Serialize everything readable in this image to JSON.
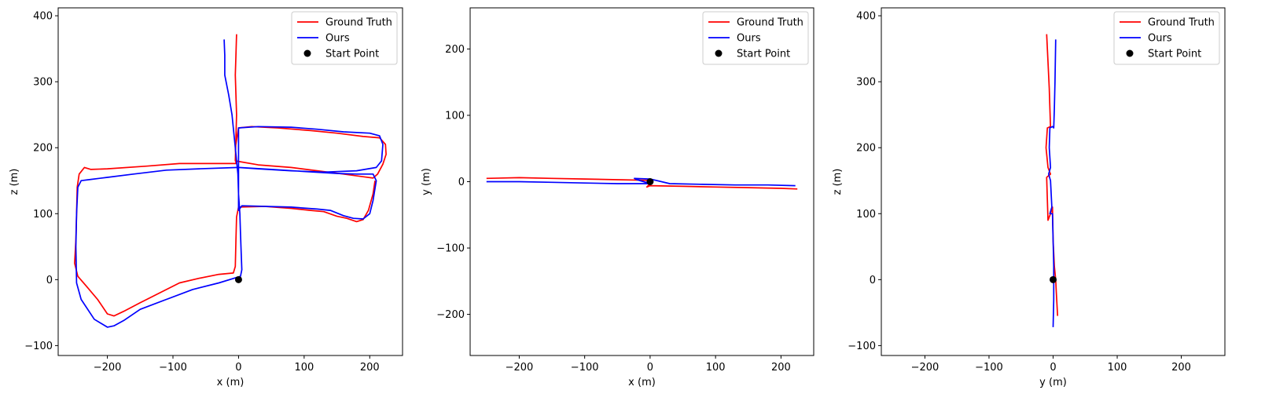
{
  "chart_data": [
    {
      "type": "line",
      "xlabel": "x (m)",
      "ylabel": "z (m)",
      "xlim": [
        -275,
        250
      ],
      "ylim": [
        -115,
        412
      ],
      "xticks": [
        -200,
        -100,
        0,
        100,
        200
      ],
      "yticks": [
        -100,
        0,
        100,
        200,
        300,
        400
      ],
      "xtick_labels": [
        "−200",
        "−100",
        "0",
        "100",
        "200"
      ],
      "ytick_labels": [
        "−100",
        "0",
        "100",
        "200",
        "300",
        "400"
      ],
      "legend": {
        "placement": "top-right",
        "entries": [
          "Ground Truth",
          "Ours",
          "Start Point"
        ]
      },
      "series": [
        {
          "name": "Ground Truth",
          "color": "#ff0000",
          "points": [
            [
              -3,
              372
            ],
            [
              -4,
              340
            ],
            [
              -5,
              310
            ],
            [
              -4,
              280
            ],
            [
              -3,
              250
            ],
            [
              -4,
              215
            ],
            [
              -5,
              180
            ],
            [
              30,
              174
            ],
            [
              80,
              170
            ],
            [
              120,
              165
            ],
            [
              160,
              160
            ],
            [
              190,
              156
            ],
            [
              205,
              154
            ],
            [
              212,
              160
            ],
            [
              220,
              175
            ],
            [
              225,
              190
            ],
            [
              224,
              205
            ],
            [
              215,
              215
            ],
            [
              190,
              217
            ],
            [
              150,
              222
            ],
            [
              110,
              226
            ],
            [
              60,
              230
            ],
            [
              20,
              232
            ],
            [
              0,
              230
            ],
            [
              -5,
              200
            ],
            [
              -4,
              176
            ],
            [
              -50,
              176
            ],
            [
              -90,
              176
            ],
            [
              -140,
              172
            ],
            [
              -200,
              168
            ],
            [
              -225,
              167
            ],
            [
              -235,
              170
            ],
            [
              -243,
              160
            ],
            [
              -246,
              140
            ],
            [
              -247,
              100
            ],
            [
              -248,
              60
            ],
            [
              -250,
              25
            ],
            [
              -245,
              5
            ],
            [
              -232,
              -10
            ],
            [
              -215,
              -30
            ],
            [
              -200,
              -52
            ],
            [
              -190,
              -55
            ],
            [
              -175,
              -48
            ],
            [
              -150,
              -35
            ],
            [
              -120,
              -20
            ],
            [
              -90,
              -5
            ],
            [
              -60,
              2
            ],
            [
              -30,
              8
            ],
            [
              -8,
              10
            ],
            [
              -5,
              20
            ],
            [
              -4,
              60
            ],
            [
              -3,
              95
            ],
            [
              0,
              110
            ],
            [
              40,
              111
            ],
            [
              80,
              108
            ],
            [
              110,
              105
            ],
            [
              130,
              103
            ],
            [
              150,
              96
            ],
            [
              165,
              93
            ],
            [
              180,
              88
            ],
            [
              190,
              91
            ],
            [
              198,
              105
            ],
            [
              205,
              130
            ],
            [
              208,
              150
            ]
          ]
        },
        {
          "name": "Ours",
          "color": "#0000ff",
          "points": [
            [
              -22,
              364
            ],
            [
              -21,
              340
            ],
            [
              -21,
              310
            ],
            [
              -15,
              280
            ],
            [
              -10,
              250
            ],
            [
              -7,
              220
            ],
            [
              -5,
              200
            ],
            [
              -3,
              180
            ],
            [
              -1,
              160
            ],
            [
              0,
              130
            ],
            [
              2,
              100
            ],
            [
              3,
              70
            ],
            [
              4,
              40
            ],
            [
              5,
              15
            ],
            [
              3,
              5
            ],
            [
              -30,
              -5
            ],
            [
              -70,
              -15
            ],
            [
              -110,
              -30
            ],
            [
              -150,
              -45
            ],
            [
              -175,
              -62
            ],
            [
              -190,
              -70
            ],
            [
              -200,
              -72
            ],
            [
              -220,
              -60
            ],
            [
              -240,
              -30
            ],
            [
              -247,
              -5
            ],
            [
              -248,
              50
            ],
            [
              -247,
              100
            ],
            [
              -245,
              140
            ],
            [
              -240,
              150
            ],
            [
              -225,
              152
            ],
            [
              -200,
              155
            ],
            [
              -160,
              160
            ],
            [
              -110,
              166
            ],
            [
              -60,
              168
            ],
            [
              0,
              170
            ],
            [
              50,
              167
            ],
            [
              100,
              164
            ],
            [
              150,
              161
            ],
            [
              180,
              160
            ],
            [
              205,
              160
            ],
            [
              210,
              150
            ],
            [
              205,
              120
            ],
            [
              200,
              100
            ],
            [
              190,
              92
            ],
            [
              175,
              93
            ],
            [
              160,
              97
            ],
            [
              140,
              105
            ],
            [
              120,
              107
            ],
            [
              80,
              110
            ],
            [
              40,
              111
            ],
            [
              5,
              112
            ],
            [
              0,
              105
            ],
            [
              0,
              150
            ],
            [
              0,
              200
            ],
            [
              0,
              230
            ],
            [
              30,
              232
            ],
            [
              80,
              231
            ],
            [
              120,
              228
            ],
            [
              160,
              224
            ],
            [
              200,
              222
            ],
            [
              215,
              218
            ],
            [
              220,
              205
            ],
            [
              218,
              180
            ],
            [
              210,
              170
            ],
            [
              180,
              165
            ],
            [
              130,
              163
            ],
            [
              80,
              165
            ],
            [
              30,
              168
            ],
            [
              0,
              170
            ]
          ]
        },
        {
          "name": "Start Point",
          "color": "#000000",
          "marker": true,
          "points": [
            [
              0,
              0
            ]
          ]
        }
      ]
    },
    {
      "type": "line",
      "xlabel": "x (m)",
      "ylabel": "y (m)",
      "xlim": [
        -275,
        250
      ],
      "ylim": [
        -262,
        262
      ],
      "xticks": [
        -200,
        -100,
        0,
        100,
        200
      ],
      "yticks": [
        -200,
        -100,
        0,
        100,
        200
      ],
      "xtick_labels": [
        "−200",
        "−100",
        "0",
        "100",
        "200"
      ],
      "ytick_labels": [
        "−200",
        "−100",
        "0",
        "100",
        "200"
      ],
      "legend": {
        "placement": "top-right",
        "entries": [
          "Ground Truth",
          "Ours",
          "Start Point"
        ]
      },
      "series": [
        {
          "name": "Ground Truth",
          "color": "#ff0000",
          "points": [
            [
              -250,
              5
            ],
            [
              -200,
              6
            ],
            [
              -150,
              5
            ],
            [
              -100,
              4
            ],
            [
              -50,
              3
            ],
            [
              0,
              2
            ],
            [
              -2,
              -5
            ],
            [
              -5,
              -8
            ],
            [
              0,
              -6
            ],
            [
              50,
              -7
            ],
            [
              100,
              -8
            ],
            [
              150,
              -9
            ],
            [
              200,
              -10
            ],
            [
              225,
              -11
            ]
          ]
        },
        {
          "name": "Ours",
          "color": "#0000ff",
          "points": [
            [
              -250,
              0
            ],
            [
              -200,
              0
            ],
            [
              -150,
              -1
            ],
            [
              -100,
              -2
            ],
            [
              -50,
              -3
            ],
            [
              0,
              -3
            ],
            [
              -20,
              3
            ],
            [
              -24,
              5
            ],
            [
              0,
              4
            ],
            [
              30,
              -3
            ],
            [
              80,
              -4
            ],
            [
              130,
              -5
            ],
            [
              180,
              -5
            ],
            [
              222,
              -6
            ]
          ]
        },
        {
          "name": "Start Point",
          "color": "#000000",
          "marker": true,
          "points": [
            [
              0,
              0
            ]
          ]
        }
      ]
    },
    {
      "type": "line",
      "xlabel": "y (m)",
      "ylabel": "z (m)",
      "xlim": [
        -268,
        268
      ],
      "ylim": [
        -115,
        412
      ],
      "xticks": [
        -200,
        -100,
        0,
        100,
        200
      ],
      "yticks": [
        -100,
        0,
        100,
        200,
        300,
        400
      ],
      "xtick_labels": [
        "−200",
        "−100",
        "0",
        "100",
        "200"
      ],
      "ytick_labels": [
        "−100",
        "0",
        "100",
        "200",
        "300",
        "400"
      ],
      "legend": {
        "placement": "top-right",
        "entries": [
          "Ground Truth",
          "Ours",
          "Start Point"
        ]
      },
      "series": [
        {
          "name": "Ground Truth",
          "color": "#ff0000",
          "points": [
            [
              -10,
              372
            ],
            [
              -8,
              330
            ],
            [
              -6,
              290
            ],
            [
              -5,
              260
            ],
            [
              -4,
              232
            ],
            [
              -9,
              230
            ],
            [
              -11,
              200
            ],
            [
              -8,
              170
            ],
            [
              -4,
              160
            ],
            [
              -10,
              155
            ],
            [
              -8,
              90
            ],
            [
              -4,
              100
            ],
            [
              -1,
              110
            ],
            [
              0,
              60
            ],
            [
              2,
              20
            ],
            [
              4,
              0
            ],
            [
              5,
              -20
            ],
            [
              7,
              -55
            ]
          ]
        },
        {
          "name": "Ours",
          "color": "#0000ff",
          "points": [
            [
              4,
              364
            ],
            [
              3,
              300
            ],
            [
              2,
              260
            ],
            [
              1,
              230
            ],
            [
              -1,
              232
            ],
            [
              -5,
              230
            ],
            [
              -6,
              200
            ],
            [
              -4,
              170
            ],
            [
              -7,
              160
            ],
            [
              -4,
              150
            ],
            [
              -2,
              110
            ],
            [
              -5,
              100
            ],
            [
              -1,
              100
            ],
            [
              0,
              60
            ],
            [
              1,
              20
            ],
            [
              1,
              0
            ],
            [
              1,
              -30
            ],
            [
              0,
              -72
            ]
          ]
        },
        {
          "name": "Start Point",
          "color": "#000000",
          "marker": true,
          "points": [
            [
              0,
              0
            ]
          ]
        }
      ]
    }
  ]
}
